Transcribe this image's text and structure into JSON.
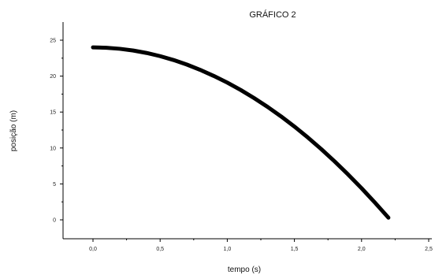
{
  "chart_data": {
    "type": "line",
    "title": "GRÁFICO 2",
    "xlabel": "tempo (s)",
    "ylabel": "posição (m)",
    "xlim": [
      0,
      2.5
    ],
    "ylim": [
      -1.5,
      27.5
    ],
    "x_ticks": [
      0.0,
      0.5,
      1.0,
      1.5,
      2.0,
      2.5
    ],
    "x_tick_labels": [
      "0,0",
      "0,5",
      "1,0",
      "1,5",
      "2,0",
      "2,5"
    ],
    "y_ticks": [
      0,
      5,
      10,
      15,
      20,
      25
    ],
    "y_tick_labels": [
      "0",
      "5",
      "10",
      "15",
      "20",
      "25"
    ],
    "grid": false,
    "series": [
      {
        "x": [
          0.0,
          0.1,
          0.2,
          0.3,
          0.4,
          0.5,
          0.6,
          0.7,
          0.8,
          0.9,
          1.0,
          1.1,
          1.2,
          1.3,
          1.4,
          1.5,
          1.6,
          1.7,
          1.8,
          1.9,
          2.0,
          2.1,
          2.2
        ],
        "y": [
          24.0,
          23.95,
          23.8,
          23.56,
          23.22,
          22.78,
          22.24,
          21.6,
          20.86,
          20.02,
          19.1,
          18.07,
          16.94,
          15.72,
          14.4,
          12.98,
          11.46,
          9.84,
          8.12,
          6.31,
          4.4,
          2.39,
          0.3
        ]
      }
    ]
  }
}
